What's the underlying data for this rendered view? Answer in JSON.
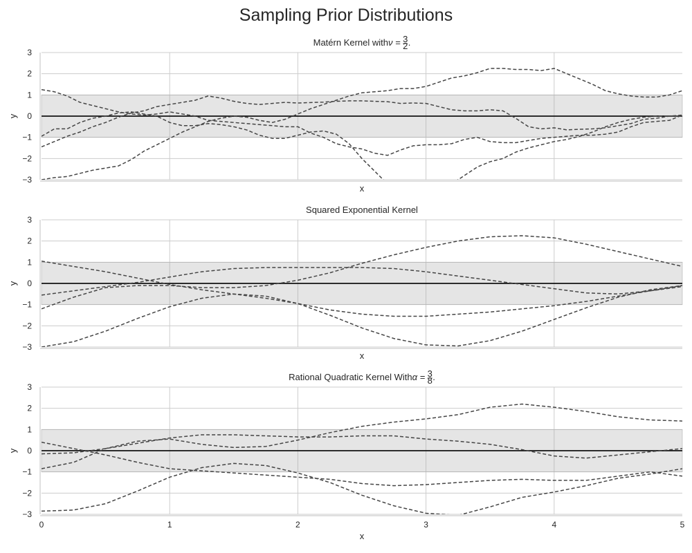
{
  "figure": {
    "title": "Sampling Prior Distributions"
  },
  "chart_data": [
    {
      "type": "line",
      "title_text": "Matérn Kernel with",
      "title_math": {
        "symbol": "ν",
        "num": "3",
        "den": "2"
      },
      "xlabel": "x",
      "ylabel": "y",
      "xlim": [
        0,
        5
      ],
      "ylim": [
        -3,
        3
      ],
      "xticks": [],
      "yticks": [
        -3,
        -2,
        -1,
        0,
        1,
        2,
        3
      ],
      "band": [
        -1,
        1
      ],
      "mean": 0,
      "grid": true,
      "series": [
        {
          "x": [
            0,
            0.1,
            0.2,
            0.3,
            0.4,
            0.5,
            0.6,
            0.7,
            0.8,
            0.9,
            1.0,
            1.1,
            1.2,
            1.3,
            1.4,
            1.5,
            1.6,
            1.7,
            1.8,
            1.9,
            2.0,
            2.1,
            2.2,
            2.3,
            2.4,
            2.5,
            2.6,
            2.7,
            2.8,
            2.9,
            3.0,
            3.1,
            3.2,
            3.3,
            3.4,
            3.5,
            3.6,
            3.7,
            3.8,
            3.9,
            4.0,
            4.1,
            4.2,
            4.3,
            4.4,
            4.5,
            4.6,
            4.7,
            4.8,
            4.9,
            5.0
          ],
          "y": [
            1.25,
            1.15,
            0.95,
            0.65,
            0.5,
            0.35,
            0.2,
            0.1,
            0.05,
            0.1,
            0.2,
            0.1,
            0.0,
            -0.2,
            -0.25,
            -0.3,
            -0.35,
            -0.4,
            -0.45,
            -0.5,
            -0.5,
            -0.8,
            -1.0,
            -1.3,
            -1.45,
            -1.55,
            -1.75,
            -1.85,
            -1.6,
            -1.4,
            -1.35,
            -1.35,
            -1.3,
            -1.1,
            -1.0,
            -1.2,
            -1.25,
            -1.25,
            -1.15,
            -1.05,
            -1.0,
            -0.95,
            -0.9,
            -0.9,
            -0.85,
            -0.75,
            -0.5,
            -0.3,
            -0.25,
            -0.2,
            0.05
          ]
        },
        {
          "x": [
            0,
            0.1,
            0.2,
            0.3,
            0.4,
            0.5,
            0.6,
            0.7,
            0.8,
            0.9,
            1.0,
            1.1,
            1.2,
            1.3,
            1.4,
            1.5,
            1.6,
            1.7,
            1.8,
            1.9,
            2.0,
            2.1,
            2.2,
            2.3,
            2.4,
            2.5,
            2.6,
            2.7,
            2.8,
            2.9,
            3.0,
            3.1,
            3.2,
            3.3,
            3.4,
            3.5,
            3.6,
            3.7,
            3.8,
            3.9,
            4.0,
            4.1,
            4.2,
            4.3,
            4.4,
            4.5,
            4.6,
            4.7,
            4.8,
            4.9,
            5.0
          ],
          "y": [
            -0.95,
            -0.6,
            -0.6,
            -0.3,
            -0.1,
            0.0,
            0.15,
            0.2,
            0.1,
            0.0,
            -0.3,
            -0.45,
            -0.45,
            -0.35,
            -0.4,
            -0.5,
            -0.65,
            -0.9,
            -1.05,
            -1.05,
            -0.9,
            -0.75,
            -0.7,
            -0.85,
            -1.3,
            -2.0,
            -2.6,
            -3.2,
            -3.5,
            -3.5,
            -3.5,
            -3.5,
            -3.2,
            -2.8,
            -2.4,
            -2.15,
            -2.0,
            -1.7,
            -1.5,
            -1.35,
            -1.2,
            -1.1,
            -0.95,
            -0.75,
            -0.5,
            -0.3,
            -0.15,
            -0.05,
            0.0,
            0.0,
            0.0
          ]
        },
        {
          "x": [
            0,
            0.1,
            0.2,
            0.3,
            0.4,
            0.5,
            0.6,
            0.7,
            0.8,
            0.9,
            1.0,
            1.1,
            1.2,
            1.3,
            1.4,
            1.5,
            1.6,
            1.7,
            1.8,
            1.9,
            2.0,
            2.1,
            2.2,
            2.3,
            2.4,
            2.5,
            2.6,
            2.7,
            2.8,
            2.9,
            3.0,
            3.1,
            3.2,
            3.3,
            3.4,
            3.5,
            3.6,
            3.7,
            3.8,
            3.9,
            4.0,
            4.1,
            4.2,
            4.3,
            4.4,
            4.5,
            4.6,
            4.7,
            4.8,
            4.9,
            5.0
          ],
          "y": [
            -1.45,
            -1.2,
            -0.95,
            -0.75,
            -0.5,
            -0.3,
            -0.05,
            0.15,
            0.25,
            0.45,
            0.55,
            0.65,
            0.75,
            0.95,
            0.85,
            0.7,
            0.6,
            0.55,
            0.6,
            0.65,
            0.62,
            0.64,
            0.66,
            0.7,
            0.72,
            0.72,
            0.7,
            0.68,
            0.6,
            0.62,
            0.6,
            0.45,
            0.3,
            0.25,
            0.25,
            0.3,
            0.25,
            -0.1,
            -0.5,
            -0.6,
            -0.55,
            -0.65,
            -0.62,
            -0.6,
            -0.55,
            -0.45,
            -0.35,
            -0.15,
            -0.1,
            0.0,
            0.05
          ]
        },
        {
          "x": [
            0,
            0.1,
            0.2,
            0.3,
            0.4,
            0.5,
            0.6,
            0.7,
            0.8,
            0.9,
            1.0,
            1.1,
            1.2,
            1.3,
            1.4,
            1.5,
            1.6,
            1.7,
            1.8,
            1.9,
            2.0,
            2.1,
            2.2,
            2.3,
            2.4,
            2.5,
            2.6,
            2.7,
            2.8,
            2.9,
            3.0,
            3.1,
            3.2,
            3.3,
            3.4,
            3.5,
            3.6,
            3.7,
            3.8,
            3.9,
            4.0,
            4.1,
            4.2,
            4.3,
            4.4,
            4.5,
            4.6,
            4.7,
            4.8,
            4.9,
            5.0
          ],
          "y": [
            -3.0,
            -2.9,
            -2.85,
            -2.7,
            -2.55,
            -2.45,
            -2.35,
            -2.05,
            -1.65,
            -1.35,
            -1.05,
            -0.75,
            -0.5,
            -0.25,
            -0.1,
            0.0,
            -0.05,
            -0.2,
            -0.3,
            -0.15,
            0.1,
            0.35,
            0.55,
            0.75,
            0.95,
            1.1,
            1.15,
            1.2,
            1.3,
            1.3,
            1.4,
            1.6,
            1.8,
            1.9,
            2.05,
            2.25,
            2.25,
            2.2,
            2.2,
            2.15,
            2.25,
            2.0,
            1.75,
            1.5,
            1.2,
            1.05,
            0.95,
            0.9,
            0.9,
            1.0,
            1.2
          ]
        }
      ]
    },
    {
      "type": "line",
      "title_text": "Squared Exponential Kernel",
      "title_math": null,
      "xlabel": "x",
      "ylabel": "y",
      "xlim": [
        0,
        5
      ],
      "ylim": [
        -3,
        3
      ],
      "xticks": [],
      "yticks": [
        -3,
        -2,
        -1,
        0,
        1,
        2,
        3
      ],
      "band": [
        -1,
        1
      ],
      "mean": 0,
      "grid": true,
      "series": [
        {
          "x": [
            0,
            0.25,
            0.5,
            0.75,
            1.0,
            1.25,
            1.5,
            1.75,
            2.0,
            2.25,
            2.5,
            2.75,
            3.0,
            3.25,
            3.5,
            3.75,
            4.0,
            4.25,
            4.5,
            4.75,
            5.0
          ],
          "y": [
            1.05,
            0.8,
            0.55,
            0.25,
            -0.05,
            -0.3,
            -0.5,
            -0.7,
            -0.95,
            -1.25,
            -1.45,
            -1.55,
            -1.55,
            -1.45,
            -1.35,
            -1.2,
            -1.05,
            -0.85,
            -0.6,
            -0.35,
            -0.15
          ]
        },
        {
          "x": [
            0,
            0.25,
            0.5,
            0.75,
            1.0,
            1.25,
            1.5,
            1.75,
            2.0,
            2.25,
            2.5,
            2.75,
            3.0,
            3.25,
            3.5,
            3.75,
            4.0,
            4.25,
            4.5,
            4.75,
            5.0
          ],
          "y": [
            -0.55,
            -0.35,
            -0.15,
            0.05,
            0.3,
            0.55,
            0.7,
            0.75,
            0.75,
            0.75,
            0.75,
            0.7,
            0.55,
            0.35,
            0.15,
            -0.05,
            -0.25,
            -0.45,
            -0.5,
            -0.35,
            -0.1
          ]
        },
        {
          "x": [
            0,
            0.25,
            0.5,
            0.75,
            1.0,
            1.25,
            1.5,
            1.75,
            2.0,
            2.25,
            2.5,
            2.75,
            3.0,
            3.25,
            3.5,
            3.75,
            4.0,
            4.25,
            4.5,
            4.75,
            5.0
          ],
          "y": [
            -1.2,
            -0.65,
            -0.2,
            -0.1,
            -0.1,
            -0.2,
            -0.2,
            -0.1,
            0.15,
            0.5,
            0.95,
            1.35,
            1.7,
            2.0,
            2.2,
            2.25,
            2.15,
            1.85,
            1.5,
            1.15,
            0.8
          ]
        },
        {
          "x": [
            0,
            0.25,
            0.5,
            0.75,
            1.0,
            1.25,
            1.5,
            1.75,
            2.0,
            2.25,
            2.5,
            2.75,
            3.0,
            3.25,
            3.5,
            3.75,
            4.0,
            4.25,
            4.5,
            4.75,
            5.0
          ],
          "y": [
            -3.0,
            -2.75,
            -2.25,
            -1.65,
            -1.1,
            -0.7,
            -0.5,
            -0.6,
            -0.95,
            -1.5,
            -2.1,
            -2.6,
            -2.9,
            -2.95,
            -2.7,
            -2.25,
            -1.7,
            -1.15,
            -0.65,
            -0.3,
            -0.1
          ]
        }
      ]
    },
    {
      "type": "line",
      "title_text": "Rational Quadratic Kernel With",
      "title_math": {
        "symbol": "α",
        "num": "3",
        "den": "8"
      },
      "xlabel": "x",
      "ylabel": "y",
      "xlim": [
        0,
        5
      ],
      "ylim": [
        -3,
        3
      ],
      "xticks": [
        0,
        1,
        2,
        3,
        4,
        5
      ],
      "yticks": [
        -3,
        -2,
        -1,
        0,
        1,
        2,
        3
      ],
      "band": [
        -1,
        1
      ],
      "mean": 0,
      "grid": true,
      "series": [
        {
          "x": [
            0,
            0.25,
            0.5,
            0.75,
            1.0,
            1.25,
            1.5,
            1.75,
            2.0,
            2.25,
            2.5,
            2.75,
            3.0,
            3.25,
            3.5,
            3.75,
            4.0,
            4.25,
            4.5,
            4.75,
            5.0
          ],
          "y": [
            0.4,
            0.1,
            -0.2,
            -0.55,
            -0.85,
            -0.95,
            -1.05,
            -1.15,
            -1.25,
            -1.35,
            -1.55,
            -1.65,
            -1.6,
            -1.5,
            -1.4,
            -1.35,
            -1.4,
            -1.4,
            -1.2,
            -1.0,
            -1.2
          ]
        },
        {
          "x": [
            0,
            0.25,
            0.5,
            0.75,
            1.0,
            1.25,
            1.5,
            1.75,
            2.0,
            2.25,
            2.5,
            2.75,
            3.0,
            3.25,
            3.5,
            3.75,
            4.0,
            4.25,
            4.5,
            4.75,
            5.0
          ],
          "y": [
            -0.15,
            -0.1,
            0.1,
            0.35,
            0.6,
            0.75,
            0.75,
            0.7,
            0.65,
            0.65,
            0.7,
            0.7,
            0.55,
            0.45,
            0.3,
            0.05,
            -0.25,
            -0.35,
            -0.2,
            -0.05,
            0.1
          ]
        },
        {
          "x": [
            0,
            0.25,
            0.5,
            0.75,
            1.0,
            1.25,
            1.5,
            1.75,
            2.0,
            2.25,
            2.5,
            2.75,
            3.0,
            3.25,
            3.5,
            3.75,
            4.0,
            4.25,
            4.5,
            4.75,
            5.0
          ],
          "y": [
            -0.85,
            -0.55,
            0.1,
            0.45,
            0.55,
            0.3,
            0.15,
            0.2,
            0.5,
            0.85,
            1.15,
            1.35,
            1.5,
            1.7,
            2.05,
            2.2,
            2.05,
            1.85,
            1.6,
            1.45,
            1.4
          ]
        },
        {
          "x": [
            0,
            0.25,
            0.5,
            0.75,
            1.0,
            1.25,
            1.5,
            1.75,
            2.0,
            2.25,
            2.5,
            2.75,
            3.0,
            3.25,
            3.5,
            3.75,
            4.0,
            4.25,
            4.5,
            4.75,
            5.0
          ],
          "y": [
            -2.85,
            -2.8,
            -2.5,
            -1.9,
            -1.25,
            -0.8,
            -0.6,
            -0.7,
            -1.05,
            -1.5,
            -2.1,
            -2.6,
            -2.95,
            -3.05,
            -2.65,
            -2.2,
            -1.95,
            -1.65,
            -1.3,
            -1.1,
            -0.85
          ]
        }
      ]
    }
  ]
}
